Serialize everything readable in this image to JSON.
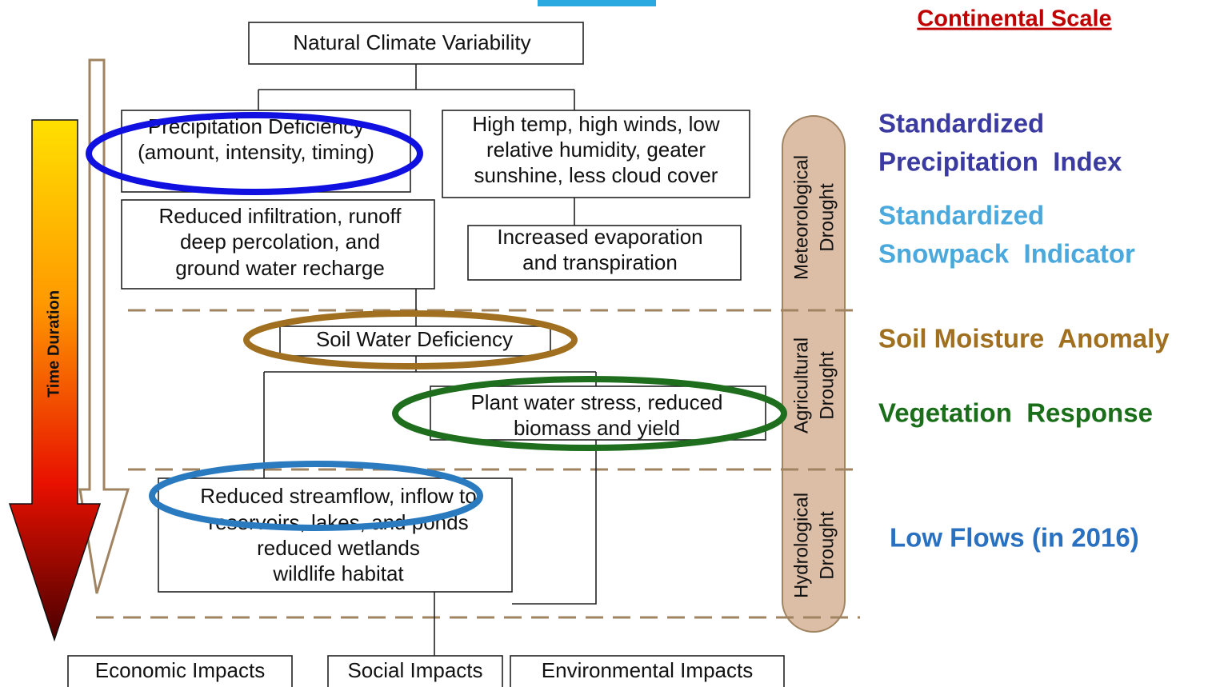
{
  "header_label": "Continental Scale",
  "time_axis_label": "Time Duration",
  "nodes": [
    {
      "lines": [
        "Natural Climate Variability"
      ]
    },
    {
      "lines": [
        "Precipitation Deficiency",
        "(amount, intensity, timing)"
      ]
    },
    {
      "lines": [
        "High temp, high winds, low",
        "relative humidity, geater",
        "sunshine, less cloud cover"
      ]
    },
    {
      "lines": [
        "Reduced infiltration, runoff",
        "deep percolation, and",
        "ground water recharge"
      ]
    },
    {
      "lines": [
        "Increased evaporation",
        "and transpiration"
      ]
    },
    {
      "lines": [
        "Soil Water Deficiency"
      ]
    },
    {
      "lines": [
        "Plant water stress, reduced",
        "biomass and yield"
      ]
    },
    {
      "lines": [
        "Reduced streamflow, inflow to",
        "reservoirs, lakes, and ponds",
        "reduced wetlands",
        "wildlife habitat"
      ]
    }
  ],
  "impacts": [
    "Economic Impacts",
    "Social Impacts",
    "Environmental Impacts"
  ],
  "drought_types": [
    {
      "lines": [
        "Meteorological",
        "Drought"
      ]
    },
    {
      "lines": [
        "Agricultural",
        "Drought"
      ]
    },
    {
      "lines": [
        "Hydrological",
        "Drought"
      ]
    }
  ],
  "indices": [
    {
      "lines": [
        "Standardized",
        "Precipitation  Index"
      ]
    },
    {
      "lines": [
        "Standardized",
        "Snowpack  Indicator"
      ]
    },
    {
      "lines": [
        "Soil Moisture  Anomaly"
      ]
    },
    {
      "lines": [
        "Vegetation  Response"
      ]
    },
    {
      "lines": [
        "Low Flows (in 2016)"
      ]
    }
  ]
}
